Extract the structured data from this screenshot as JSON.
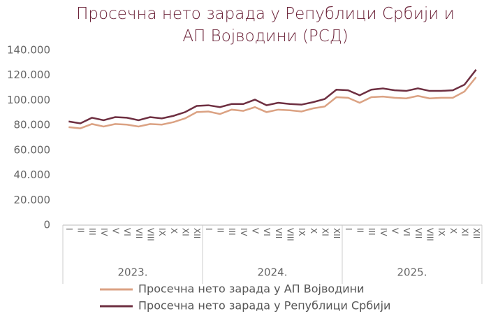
{
  "chart_data": {
    "type": "line",
    "title": "Просечна нето зарада у Републици Србији и АП Војводини (РСД)",
    "categories": [
      "I",
      "II",
      "III",
      "IV",
      "V",
      "VI",
      "VII",
      "VIII",
      "IX",
      "X",
      "XI",
      "XII",
      "I",
      "II",
      "III",
      "IV",
      "V",
      "VI",
      "VII",
      "VIII",
      "IX",
      "X",
      "XI",
      "XII",
      "I",
      "II",
      "III",
      "IV",
      "V",
      "VI",
      "VII",
      "VIII",
      "IX",
      "X",
      "XI",
      "XII"
    ],
    "groups": [
      "2023.",
      "2024.",
      "2025."
    ],
    "series": [
      {
        "name": "Просечна нето зарада у АП Војводини",
        "color": "#dba283",
        "values": [
          78500,
          77500,
          81000,
          79000,
          81000,
          80500,
          79000,
          81000,
          80500,
          82500,
          85500,
          90500,
          91000,
          89000,
          92500,
          91500,
          94500,
          90500,
          92500,
          92000,
          91000,
          93500,
          95000,
          102500,
          102000,
          98000,
          102500,
          103000,
          102000,
          101500,
          103500,
          101500,
          102000,
          102000,
          107000,
          118500
        ]
      },
      {
        "name": "Просечна нето зарада у Републици Србији",
        "color": "#6e2f41",
        "values": [
          83000,
          81500,
          86000,
          84000,
          86500,
          86000,
          84000,
          86500,
          85500,
          87500,
          90500,
          95500,
          96000,
          94500,
          97000,
          97000,
          100500,
          96000,
          98000,
          97000,
          96500,
          98500,
          101000,
          108500,
          108000,
          104000,
          108500,
          109500,
          108000,
          107500,
          109500,
          107500,
          107500,
          108000,
          112500,
          124500
        ]
      }
    ],
    "ylim": [
      0,
      140000
    ],
    "yticks": [
      0,
      {
        "value": 20000,
        "label": "20.000"
      },
      {
        "value": 40000,
        "label": "40.000"
      },
      {
        "value": 60000,
        "label": "60.000"
      },
      {
        "value": 80000,
        "label": "80.000"
      },
      {
        "value": 100000,
        "label": "100.000"
      },
      {
        "value": 120000,
        "label": "120.000"
      },
      {
        "value": 140000,
        "label": "140.000"
      }
    ]
  }
}
